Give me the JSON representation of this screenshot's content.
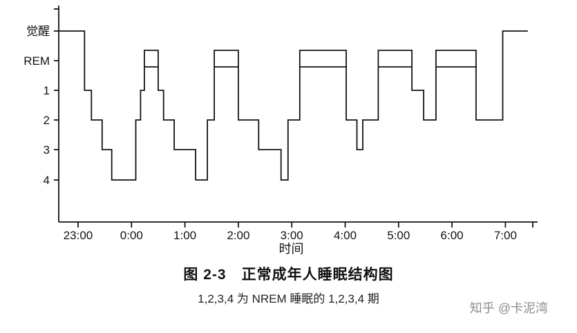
{
  "chart_data": {
    "type": "line",
    "step": true,
    "title": "图 2-3　正常成年人睡眠结构图",
    "subtitle": "1,2,3,4 为 NREM 睡眠的 1,2,3,4 期",
    "xlabel": "时间",
    "y_categories": [
      "觉醒",
      "REM",
      "1",
      "2",
      "3",
      "4"
    ],
    "x_ticks": [
      "23:00",
      "0:00",
      "1:00",
      "2:00",
      "3:00",
      "4:00",
      "5:00",
      "6:00",
      "7:00"
    ],
    "x_tick_hours": [
      23,
      24,
      25,
      26,
      27,
      28,
      29,
      30,
      31
    ],
    "line_color": "#111111",
    "segments": [
      [
        "wake",
        22.65,
        23.12
      ],
      [
        "1",
        23.12,
        23.25
      ],
      [
        "2",
        23.25,
        23.45
      ],
      [
        "3",
        23.45,
        23.63
      ],
      [
        "4",
        23.63,
        24.08
      ],
      [
        "2",
        24.08,
        24.17
      ],
      [
        "1",
        24.17,
        24.24
      ],
      [
        "REM",
        24.24,
        24.5
      ],
      [
        "1",
        24.5,
        24.6
      ],
      [
        "2",
        24.6,
        24.8
      ],
      [
        "3",
        24.8,
        25.2
      ],
      [
        "4",
        25.2,
        25.42
      ],
      [
        "2",
        25.42,
        25.55
      ],
      [
        "REM",
        25.55,
        26.0
      ],
      [
        "2",
        26.0,
        26.38
      ],
      [
        "3",
        26.38,
        26.8
      ],
      [
        "4",
        26.8,
        26.93
      ],
      [
        "2",
        26.93,
        27.15
      ],
      [
        "REM",
        27.15,
        28.02
      ],
      [
        "2",
        28.02,
        28.22
      ],
      [
        "3",
        28.22,
        28.33
      ],
      [
        "2",
        28.33,
        28.62
      ],
      [
        "REM",
        28.62,
        29.25
      ],
      [
        "1",
        29.25,
        29.47
      ],
      [
        "2",
        29.47,
        29.7
      ],
      [
        "REM",
        29.7,
        30.45
      ],
      [
        "2",
        30.45,
        30.95
      ],
      [
        "wake",
        30.95,
        31.42
      ]
    ]
  },
  "watermark": {
    "text": "知乎 @卡泥湾",
    "color": "#8c8c8c"
  }
}
